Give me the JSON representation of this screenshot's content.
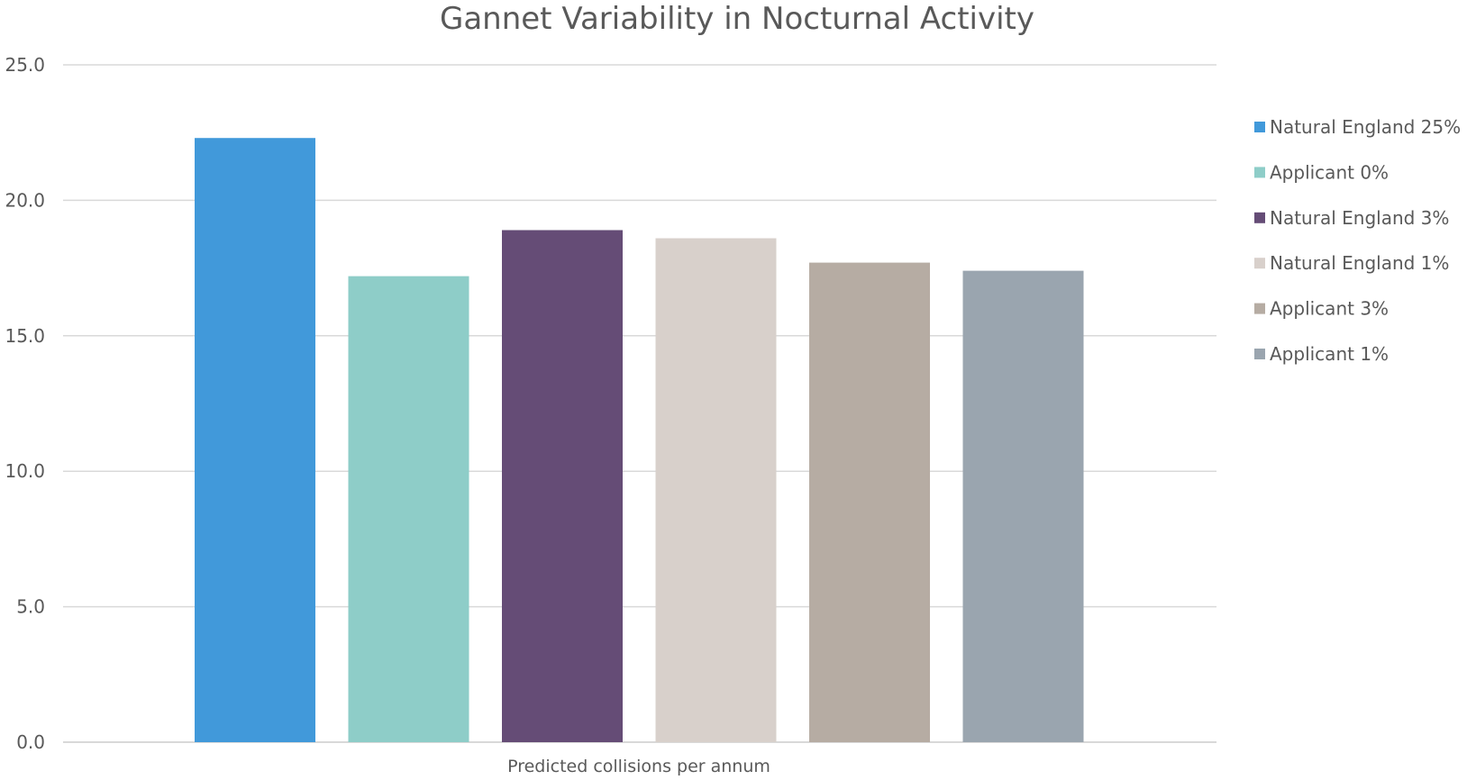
{
  "chart_data": {
    "type": "bar",
    "title": "Gannet Variability in Nocturnal Activity",
    "xlabel": "",
    "ylabel": "",
    "categories": [
      "Predicted collisions per annum"
    ],
    "series": [
      {
        "name": "Natural England 25%",
        "values": [
          22.3
        ],
        "color": "#4199DA"
      },
      {
        "name": "Applicant 0%",
        "values": [
          17.2
        ],
        "color": "#8ECDC8"
      },
      {
        "name": "Natural England 3%",
        "values": [
          18.9
        ],
        "color": "#654C76"
      },
      {
        "name": "Natural England 1%",
        "values": [
          18.6
        ],
        "color": "#D8D0CB"
      },
      {
        "name": "Applicant 3%",
        "values": [
          17.7
        ],
        "color": "#B6ACA3"
      },
      {
        "name": "Applicant 1%",
        "values": [
          17.4
        ],
        "color": "#9AA5AF"
      }
    ],
    "ylim": [
      0,
      25
    ],
    "yticks": [
      "0.0",
      "5.0",
      "10.0",
      "15.0",
      "20.0",
      "25.0"
    ],
    "ytick_values": [
      0,
      5,
      10,
      15,
      20,
      25
    ],
    "grid": true,
    "legend_position": "right",
    "text_color": "#595959",
    "grid_color": "#D9D9D9"
  }
}
